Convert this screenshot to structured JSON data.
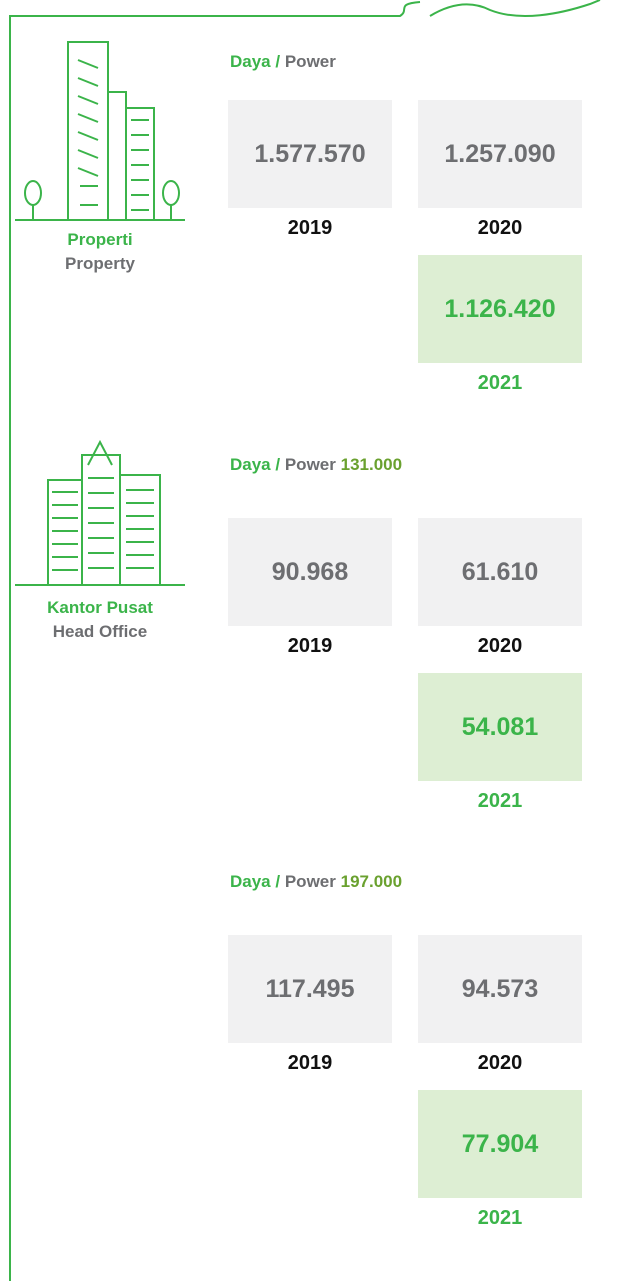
{
  "sections": [
    {
      "label": {
        "main": "Properti",
        "sub": "Property"
      },
      "header": {
        "daya": "Daya",
        "slash": "/",
        "power": "Power"
      },
      "boxes": [
        {
          "value": "1.577.570",
          "year": "2019"
        },
        {
          "value": "1.257.090",
          "year": "2020"
        },
        {
          "value": "1.126.420",
          "year": "2021"
        }
      ]
    },
    {
      "label": {
        "main": "Kantor Pusat",
        "sub": "Head Office"
      },
      "header": {
        "daya": "Daya",
        "slash": "/",
        "power": "Power",
        "target": "131.000"
      },
      "boxes": [
        {
          "value": "90.968",
          "year": "2019"
        },
        {
          "value": "61.610",
          "year": "2020"
        },
        {
          "value": "54.081",
          "year": "2021"
        }
      ]
    },
    {
      "header": {
        "daya": "Daya",
        "slash": "/",
        "power": "Power",
        "target": "197.000"
      },
      "boxes": [
        {
          "value": "117.495",
          "year": "2019"
        },
        {
          "value": "94.573",
          "year": "2020"
        },
        {
          "value": "77.904",
          "year": "2021"
        }
      ]
    }
  ]
}
